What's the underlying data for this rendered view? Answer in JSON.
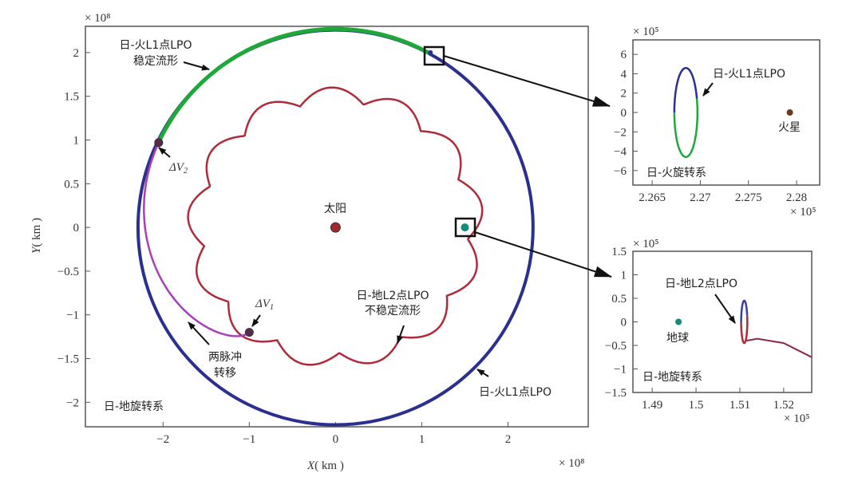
{
  "chart_data": [
    {
      "type": "line",
      "xlabel_var": "X",
      "xlabel_unit": "( km )",
      "ylabel_var": "Y",
      "ylabel_unit": "( km )",
      "x_multiplier": "× 10⁸",
      "y_multiplier": "× 10⁸",
      "xlim": [
        -2.9,
        2.93
      ],
      "ylim": [
        -2.28,
        2.3
      ],
      "xticks": [
        -2,
        -1,
        0,
        1,
        2
      ],
      "yticks": [
        -2,
        -1.5,
        -1,
        -0.5,
        0,
        0.5,
        1,
        1.5,
        2
      ],
      "frame_label": "日-地旋转系",
      "series": [
        {
          "name": "日-火L1点LPO",
          "color": "#2b2f8f",
          "shape": "circle",
          "radius": 2.29
        },
        {
          "name": "日-火L1点LPO 稳定流形",
          "color": "#1fa83a",
          "shape": "arc",
          "radius": 2.27,
          "from_point": [
            -2.05,
            0.97
          ],
          "to_point": [
            1.1,
            2.0
          ]
        },
        {
          "name": "日-地L2点LPO 不稳定流形",
          "color": "#b02a3a",
          "shape": "scalloped",
          "radius_range": [
            1.48,
            1.65
          ]
        },
        {
          "name": "两脉冲 转移",
          "color": "#a640b8",
          "from_point": [
            -1.0,
            -1.2
          ],
          "to_point": [
            -2.05,
            0.97
          ]
        }
      ],
      "points": [
        {
          "label": "太阳",
          "x": 0,
          "y": 0,
          "color": "#a3282e"
        },
        {
          "label": "ΔV1",
          "x": -1.0,
          "y": -1.2
        },
        {
          "label": "ΔV2",
          "x": -2.05,
          "y": 0.97
        }
      ],
      "annotations": {
        "mars_l1_manifold_line1": "日-火L1点LPO",
        "mars_l1_manifold_line2": "稳定流形",
        "earth_l2_manifold_line1": "日-地L2点LPO",
        "earth_l2_manifold_line2": "不稳定流形",
        "transfer_line1": "两脉冲",
        "transfer_line2": "转移",
        "mars_l1_lpo": "日-火L1点LPO",
        "sun": "太阳",
        "dv1": "ΔV",
        "dv1_sub": "1",
        "dv2": "ΔV",
        "dv2_sub": "2"
      }
    },
    {
      "type": "line",
      "x_multiplier": "× 10⁵",
      "y_multiplier": "× 10⁵",
      "xlim": [
        2.263,
        2.2824
      ],
      "ylim": [
        -7.5,
        7.5
      ],
      "xticks": [
        2.265,
        2.27,
        2.275,
        2.28
      ],
      "yticks": [
        -6,
        -4,
        -2,
        0,
        2,
        4,
        6
      ],
      "frame_label": "日-火旋转系",
      "lpo_label": "日-火L1点LPO",
      "orbit": {
        "center": [
          2.2685,
          0
        ],
        "half_width": 0.0012,
        "half_height": 4.6,
        "colors": [
          "#2b2f8f",
          "#1fa83a"
        ]
      },
      "body": {
        "label": "火星",
        "x": 2.2793,
        "y": 0,
        "color": "#6b3a1e"
      }
    },
    {
      "type": "line",
      "x_multiplier": "× 10⁵",
      "y_multiplier": "× 10⁵",
      "xlim": [
        1.4856,
        1.5264
      ],
      "ylim": [
        -1.5,
        1.5
      ],
      "xticks": [
        1.49,
        1.5,
        1.51,
        1.52
      ],
      "yticks": [
        -1.5,
        -1,
        -0.5,
        0,
        0.5,
        1,
        1.5
      ],
      "frame_label": "日-地旋转系",
      "lpo_label": "日-地L2点LPO",
      "orbit": {
        "center": [
          1.511,
          0
        ],
        "half_width": 0.0007,
        "half_height": 0.45,
        "colors": [
          "#3b3f9f",
          "#b02a3a"
        ]
      },
      "tail": [
        [
          1.5115,
          -0.4
        ],
        [
          1.514,
          -0.36
        ],
        [
          1.52,
          -0.45
        ],
        [
          1.5264,
          -0.75
        ]
      ],
      "body": {
        "label": "地球",
        "x": 1.496,
        "y": 0,
        "color": "#138a7a"
      }
    }
  ]
}
